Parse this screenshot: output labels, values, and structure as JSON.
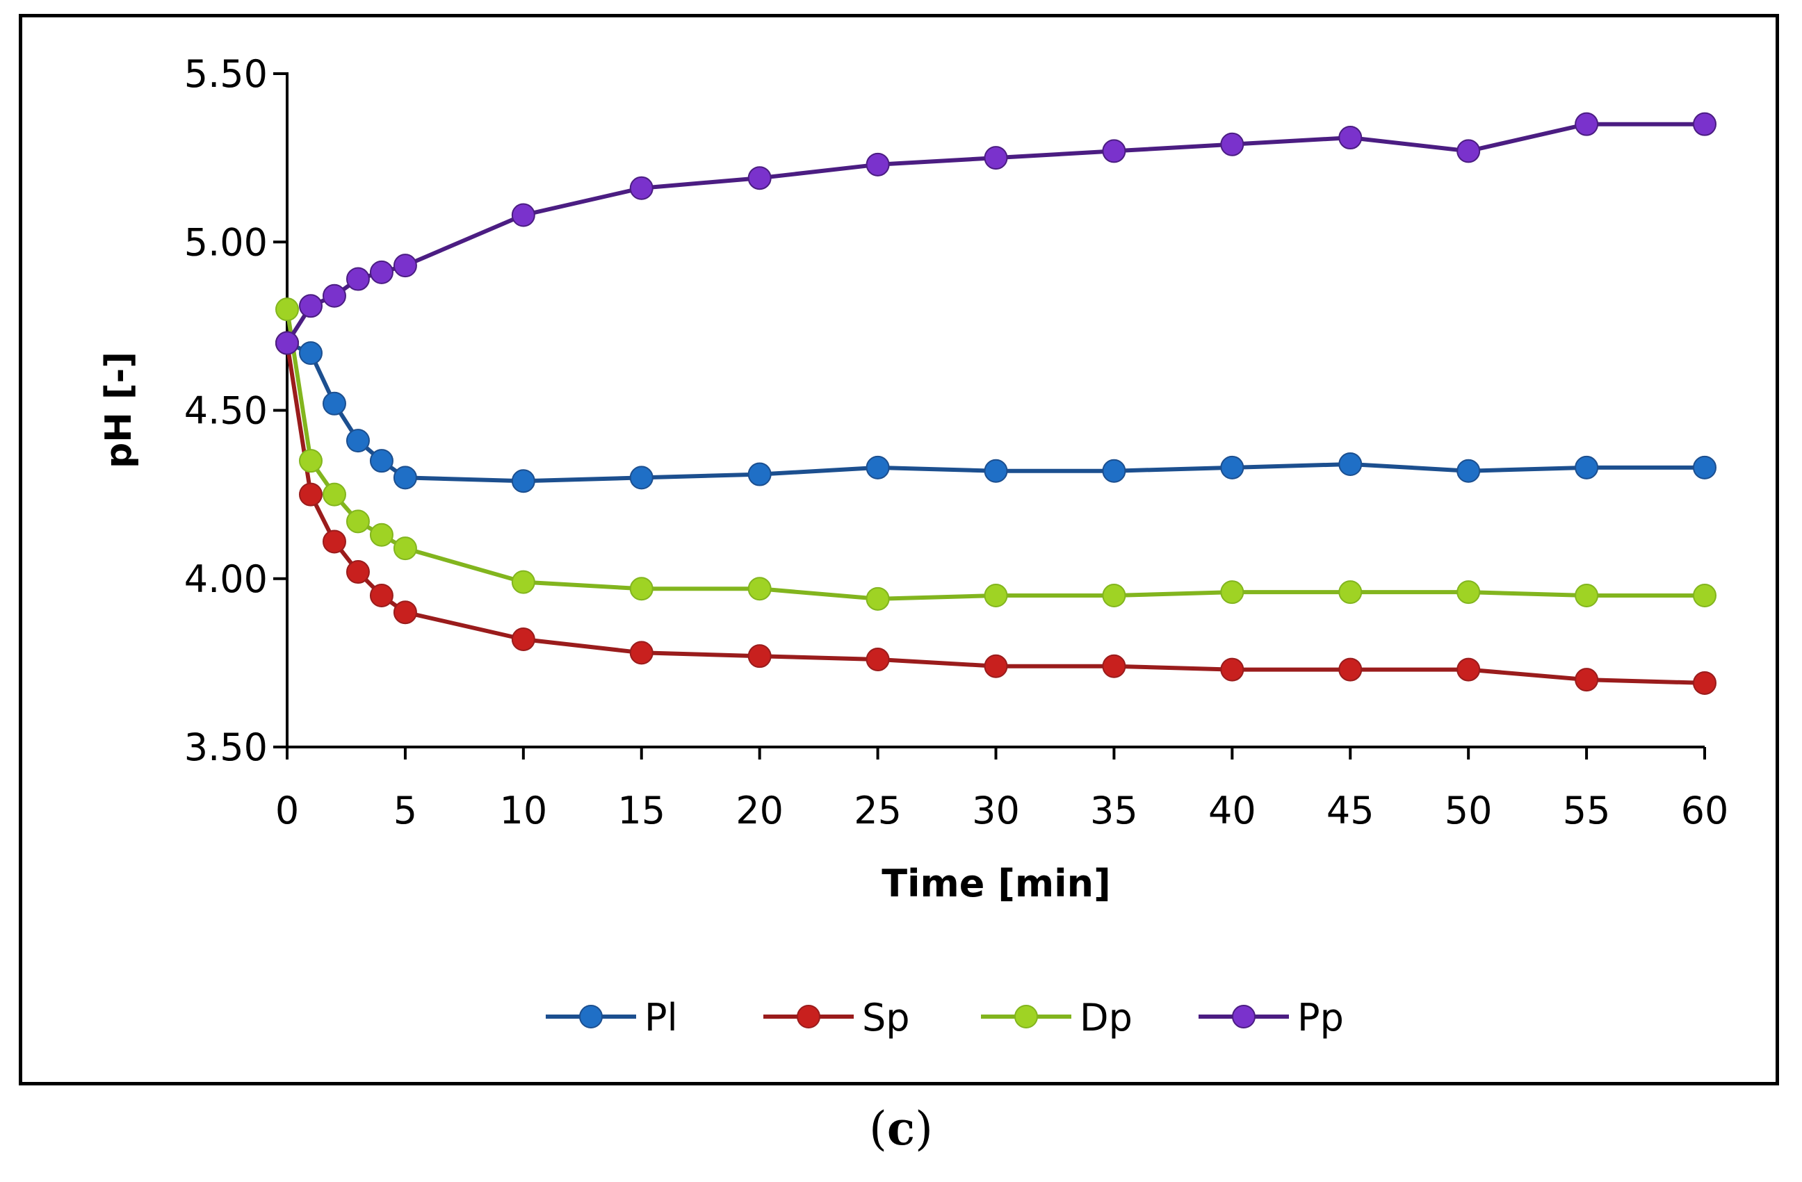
{
  "panel_label": {
    "open": "(",
    "letter": "c",
    "close": ")"
  },
  "chart_data": {
    "type": "line",
    "title": "",
    "xlabel": "Time [min]",
    "ylabel": "pH [-]",
    "xlim": [
      0,
      60
    ],
    "ylim": [
      3.5,
      5.5
    ],
    "xticks": [
      0,
      5,
      10,
      15,
      20,
      25,
      30,
      35,
      40,
      45,
      50,
      55,
      60
    ],
    "yticks": [
      3.5,
      4.0,
      4.5,
      5.0,
      5.5
    ],
    "xtick_labels": [
      "0",
      "5",
      "10",
      "15",
      "20",
      "25",
      "30",
      "35",
      "40",
      "45",
      "50",
      "55",
      "60"
    ],
    "ytick_labels": [
      "3.50",
      "4.00",
      "4.50",
      "5.00",
      "5.50"
    ],
    "grid": false,
    "legend_position": "bottom",
    "x": [
      0,
      1,
      2,
      3,
      4,
      5,
      10,
      15,
      20,
      25,
      30,
      35,
      40,
      45,
      50,
      55,
      60
    ],
    "series": [
      {
        "name": "Pl",
        "color": "#1f6fc6",
        "line_color": "#1c4f8f",
        "values": [
          4.7,
          4.67,
          4.52,
          4.41,
          4.35,
          4.3,
          4.29,
          4.3,
          4.31,
          4.33,
          4.32,
          4.32,
          4.33,
          4.34,
          4.32,
          4.33,
          4.33
        ]
      },
      {
        "name": "Sp",
        "color": "#c8201e",
        "line_color": "#9a1c1c",
        "values": [
          4.7,
          4.25,
          4.11,
          4.02,
          3.95,
          3.9,
          3.82,
          3.78,
          3.77,
          3.76,
          3.74,
          3.74,
          3.73,
          3.73,
          3.73,
          3.7,
          3.69
        ]
      },
      {
        "name": "Dp",
        "color": "#9fd324",
        "line_color": "#82b51e",
        "values": [
          4.8,
          4.35,
          4.25,
          4.17,
          4.13,
          4.09,
          3.99,
          3.97,
          3.97,
          3.94,
          3.95,
          3.95,
          3.96,
          3.96,
          3.96,
          3.95,
          3.95
        ]
      },
      {
        "name": "Pp",
        "color": "#7a32cc",
        "line_color": "#4b1d82",
        "values": [
          4.7,
          4.81,
          4.84,
          4.89,
          4.91,
          4.93,
          5.08,
          5.16,
          5.19,
          5.23,
          5.25,
          5.27,
          5.29,
          5.31,
          5.27,
          5.35,
          5.35
        ]
      }
    ]
  }
}
